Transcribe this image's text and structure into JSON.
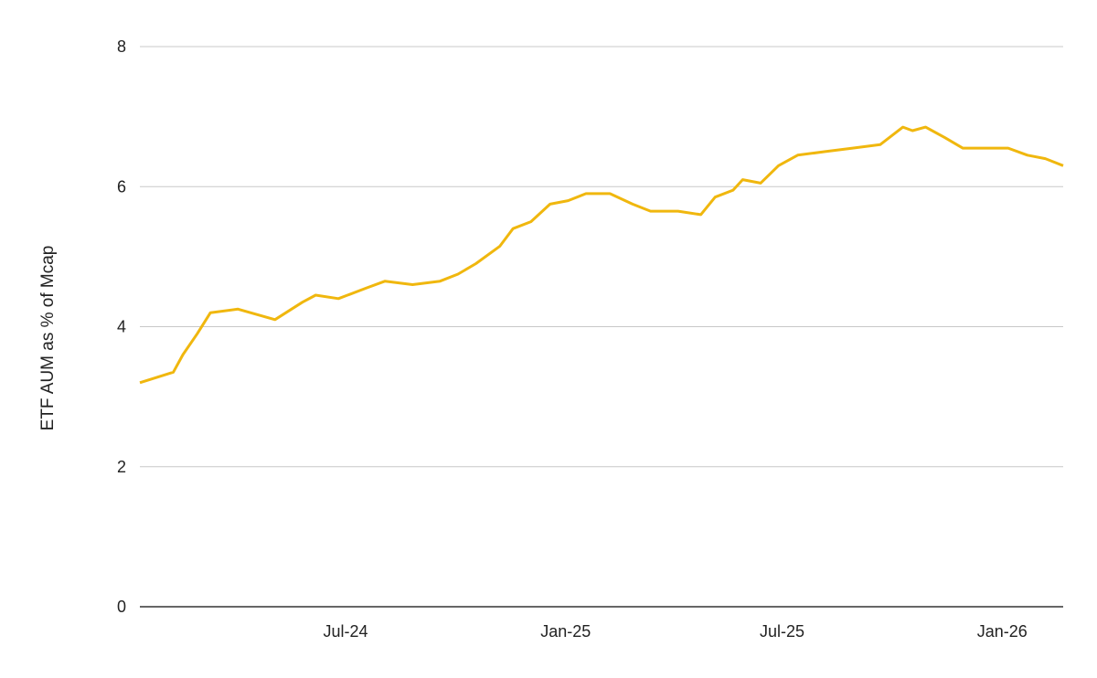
{
  "chart_data": {
    "type": "line",
    "title": "",
    "xlabel": "",
    "ylabel": "ETF AUM as % of Mcap",
    "ylim": [
      0,
      8
    ],
    "yticks": [
      "0",
      "2",
      "4",
      "6",
      "8"
    ],
    "xlim": [
      "2024-01-11",
      "2026-02-21"
    ],
    "xticks": [
      {
        "date": "2024-07-01",
        "label": "Jul-24"
      },
      {
        "date": "2025-01-01",
        "label": "Jan-25"
      },
      {
        "date": "2025-07-01",
        "label": "Jul-25"
      },
      {
        "date": "2026-01-01",
        "label": "Jan-26"
      }
    ],
    "grid": true,
    "color": "#F0B70E",
    "series": [
      {
        "x": [
          "2024-01-11",
          "2024-02-08",
          "2024-02-16",
          "2024-02-28",
          "2024-03-10",
          "2024-04-02",
          "2024-05-03",
          "2024-05-26",
          "2024-06-06",
          "2024-06-25",
          "2024-07-18",
          "2024-08-03",
          "2024-08-26",
          "2024-09-18",
          "2024-10-03",
          "2024-10-18",
          "2024-11-07",
          "2024-11-18",
          "2024-12-03",
          "2024-12-19",
          "2025-01-03",
          "2025-01-18",
          "2025-02-07",
          "2025-02-26",
          "2025-03-13",
          "2025-04-05",
          "2025-04-24",
          "2025-05-06",
          "2025-05-21",
          "2025-05-29",
          "2025-06-13",
          "2025-06-28",
          "2025-07-14",
          "2025-08-06",
          "2025-08-29",
          "2025-09-21",
          "2025-10-10",
          "2025-10-18",
          "2025-10-29",
          "2025-11-14",
          "2025-11-29",
          "2025-12-22",
          "2026-01-06",
          "2026-01-22",
          "2026-02-06",
          "2026-02-21"
        ],
        "y": [
          3.2,
          3.35,
          3.6,
          3.9,
          4.2,
          4.25,
          4.1,
          4.35,
          4.45,
          4.4,
          4.55,
          4.65,
          4.6,
          4.65,
          4.75,
          4.9,
          5.15,
          5.4,
          5.5,
          5.75,
          5.8,
          5.9,
          5.9,
          5.75,
          5.65,
          5.65,
          5.6,
          5.85,
          5.95,
          6.1,
          6.05,
          6.3,
          6.45,
          6.5,
          6.55,
          6.6,
          6.85,
          6.8,
          6.85,
          6.7,
          6.55,
          6.55,
          6.55,
          6.45,
          6.4,
          6.3
        ]
      }
    ]
  }
}
